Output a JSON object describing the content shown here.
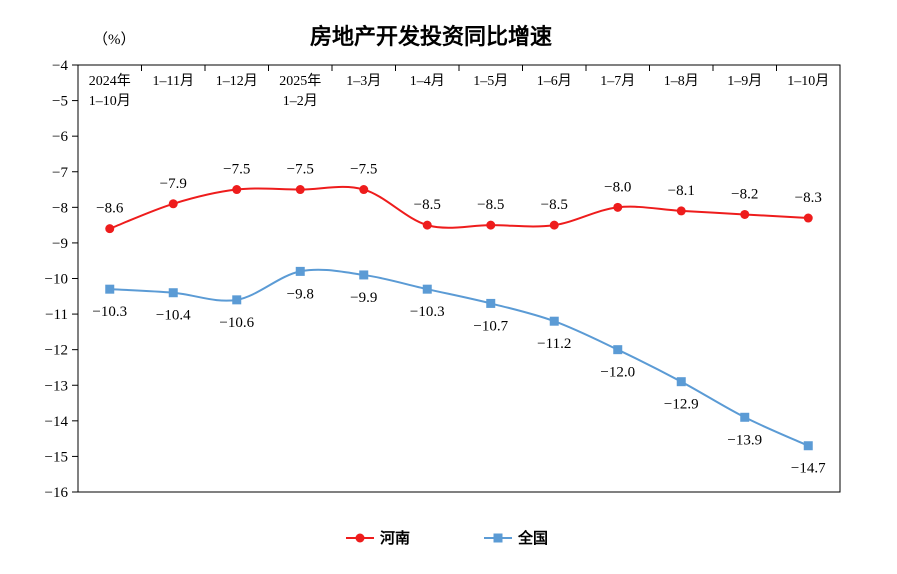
{
  "chart_data": {
    "type": "line",
    "title": "房地产开发投资同比增速",
    "unit_label": "（%）",
    "categories": [
      [
        "2024年",
        "1–10月"
      ],
      [
        "1–11月"
      ],
      [
        "1–12月"
      ],
      [
        "2025年",
        "1–2月"
      ],
      [
        "1–3月"
      ],
      [
        "1–4月"
      ],
      [
        "1–5月"
      ],
      [
        "1–6月"
      ],
      [
        "1–7月"
      ],
      [
        "1–8月"
      ],
      [
        "1–9月"
      ],
      [
        "1–10月"
      ]
    ],
    "series": [
      {
        "name": "河南",
        "color": "#ee1c1c",
        "marker": "circle",
        "values": [
          -8.6,
          -7.9,
          -7.5,
          -7.5,
          -7.5,
          -8.5,
          -8.5,
          -8.5,
          -8.0,
          -8.1,
          -8.2,
          -8.3
        ],
        "labels": [
          "−8.6",
          "−7.9",
          "−7.5",
          "−7.5",
          "−7.5",
          "−8.5",
          "−8.5",
          "−8.5",
          "−8.0",
          "−8.1",
          "−8.2",
          "−8.3"
        ]
      },
      {
        "name": "全国",
        "color": "#5b9bd5",
        "marker": "square",
        "values": [
          -10.3,
          -10.4,
          -10.6,
          -9.8,
          -9.9,
          -10.3,
          -10.7,
          -11.2,
          -12.0,
          -12.9,
          -13.9,
          -14.7
        ],
        "labels": [
          "−10.3",
          "−10.4",
          "−10.6",
          "−9.8",
          "−9.9",
          "−10.3",
          "−10.7",
          "−11.2",
          "−12.0",
          "−12.9",
          "−13.9",
          "−14.7"
        ]
      }
    ],
    "ylim": [
      -16,
      -4
    ],
    "yticks": [
      -4,
      -5,
      -6,
      -7,
      -8,
      -9,
      -10,
      -11,
      -12,
      -13,
      -14,
      -15,
      -16
    ],
    "ytick_labels": [
      "−4",
      "−5",
      "−6",
      "−7",
      "−8",
      "−9",
      "−10",
      "−11",
      "−12",
      "−13",
      "−14",
      "−15",
      "−16"
    ],
    "x_axis_position": "top",
    "legend_position": "bottom-center",
    "grid": false
  }
}
